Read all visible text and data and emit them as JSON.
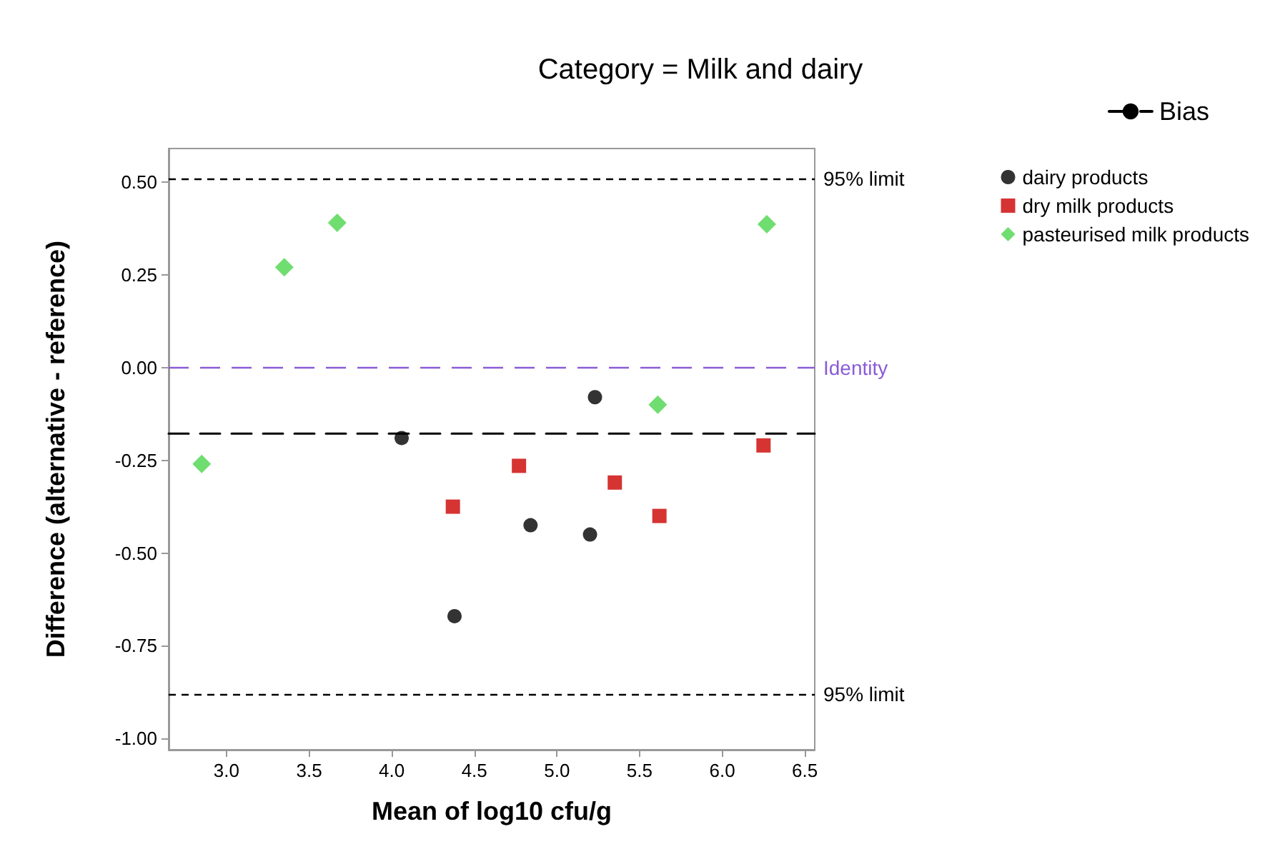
{
  "chart_data": {
    "type": "scatter",
    "title": "Category = Milk and dairy",
    "xlabel": "Mean of log10 cfu/g",
    "ylabel": "Difference (alternative - reference)",
    "xlim": [
      2.65,
      6.56
    ],
    "ylim": [
      -1.03,
      0.59
    ],
    "xticks": [
      {
        "value": 3,
        "label": "3.0"
      },
      {
        "value": 3.5,
        "label": "3.5"
      },
      {
        "value": 4,
        "label": "4.0"
      },
      {
        "value": 4.5,
        "label": "4.5"
      },
      {
        "value": 5,
        "label": "5.0"
      },
      {
        "value": 5.5,
        "label": "5.5"
      },
      {
        "value": 6,
        "label": "6.0"
      },
      {
        "value": 6.5,
        "label": "6.5"
      }
    ],
    "yticks": [
      {
        "value": 0.5,
        "label": "0.50"
      },
      {
        "value": 0.25,
        "label": "0.25"
      },
      {
        "value": 0,
        "label": "0.00"
      },
      {
        "value": -0.25,
        "label": "-0.25"
      },
      {
        "value": -0.5,
        "label": "-0.50"
      },
      {
        "value": -0.75,
        "label": "-0.75"
      },
      {
        "value": -1,
        "label": "-1.00"
      }
    ],
    "grid": false,
    "legend": "right",
    "series": [
      {
        "name": "dairy products",
        "color": "#000000",
        "marker": "circle",
        "x": [
          4.06,
          4.38,
          4.84,
          5.2,
          5.23
        ],
        "values": [
          -0.19,
          -0.67,
          -0.425,
          -0.45,
          -0.08
        ]
      },
      {
        "name": "dry milk products",
        "color": "#cc0000",
        "marker": "square",
        "x": [
          4.37,
          4.77,
          5.35,
          5.62,
          6.25
        ],
        "values": [
          -0.375,
          -0.265,
          -0.31,
          -0.4,
          -0.21
        ]
      },
      {
        "name": "pasteurised milk products",
        "color": "#4cd44c",
        "marker": "diamond",
        "x": [
          2.85,
          3.35,
          3.67,
          5.61,
          6.27
        ],
        "values": [
          -0.26,
          0.27,
          0.39,
          -0.1,
          0.386
        ]
      },
      {
        "name": "Bias",
        "type": "line",
        "color": "#000000",
        "line_style": "dashed",
        "marker": "none",
        "x": [
          2.65,
          6.56
        ],
        "values": [
          -0.178,
          -0.178
        ]
      }
    ],
    "ref_lines": [
      {
        "axis": "y",
        "value": 0.51,
        "label": "95% limit",
        "color": "#000000",
        "line_style": "dotted"
      },
      {
        "axis": "y",
        "value": 0,
        "label": "Identity",
        "color": "#8a5cd6",
        "line_style": "dashed"
      },
      {
        "axis": "y",
        "value": -0.876,
        "label": "95% limit",
        "color": "#000000",
        "line_style": "dotted"
      }
    ]
  }
}
